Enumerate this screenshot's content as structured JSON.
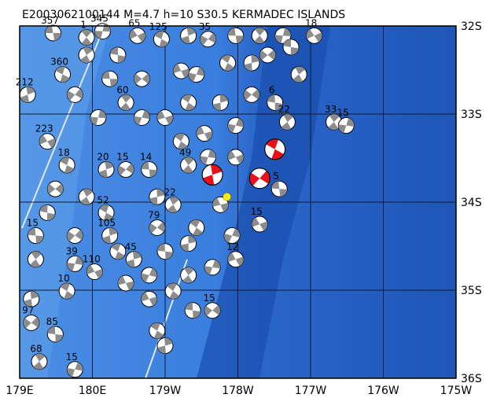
{
  "map": {
    "title": "E2003062100144 M=4.7 h=10 S30.5 KERMADEC ISLANDS",
    "xlim": [
      179,
      -175
    ],
    "ylim": [
      -32,
      -36
    ],
    "xticks": [
      {
        "value": 179,
        "label": "179E"
      },
      {
        "value": 180,
        "label": "180E"
      },
      {
        "value": -179,
        "label": "179W"
      },
      {
        "value": -178,
        "label": "178W"
      },
      {
        "value": -177,
        "label": "177W"
      },
      {
        "value": -176,
        "label": "176W"
      },
      {
        "value": -175,
        "label": "175W"
      }
    ],
    "yticks": [
      {
        "value": -32,
        "label": "32S"
      },
      {
        "value": -33,
        "label": "33S"
      },
      {
        "value": -34,
        "label": "34S"
      },
      {
        "value": -35,
        "label": "35S"
      },
      {
        "value": -36,
        "label": "36S"
      }
    ],
    "epicenter": {
      "lon": -178.15,
      "lat": -33.94,
      "color": "#ffee00"
    },
    "mechanism_color": "#8c8c8c",
    "events": [
      {
        "lon": 179.46,
        "lat": -32.08,
        "label": 357
      },
      {
        "lon": 179.92,
        "lat": -32.13,
        "label": 1
      },
      {
        "lon": -179.86,
        "lat": -32.06,
        "label": 345
      },
      {
        "lon": -179.38,
        "lat": -32.11,
        "label": 65
      },
      {
        "lon": -179.05,
        "lat": -32.15,
        "label": 125
      },
      {
        "lon": -178.68,
        "lat": -32.11
      },
      {
        "lon": -178.41,
        "lat": -32.15,
        "label": 35
      },
      {
        "lon": -178.03,
        "lat": -32.11
      },
      {
        "lon": -177.7,
        "lat": -32.11
      },
      {
        "lon": -177.38,
        "lat": -32.11
      },
      {
        "lon": -176.95,
        "lat": -32.11,
        "label": 18
      },
      {
        "lon": 179.59,
        "lat": -32.55,
        "label": 360
      },
      {
        "lon": 179.11,
        "lat": -32.78,
        "label": 212
      },
      {
        "lon": 179.76,
        "lat": -32.78
      },
      {
        "lon": -179.76,
        "lat": -32.6
      },
      {
        "lon": -179.54,
        "lat": -32.87,
        "label": 60
      },
      {
        "lon": -179.92,
        "lat": -33.04
      },
      {
        "lon": 179.38,
        "lat": -33.31,
        "label": 223
      },
      {
        "lon": 179.65,
        "lat": -33.58,
        "label": 18
      },
      {
        "lon": -179.81,
        "lat": -33.63,
        "label": 20
      },
      {
        "lon": -179.54,
        "lat": -33.63,
        "label": 15
      },
      {
        "lon": -179.22,
        "lat": -33.63,
        "label": 14
      },
      {
        "lon": -178.68,
        "lat": -33.58,
        "label": 49
      },
      {
        "lon": -178.41,
        "lat": -33.49
      },
      {
        "lon": -178.03,
        "lat": -33.49
      },
      {
        "lon": -177.49,
        "lat": -33.4,
        "color": "#e8101a"
      },
      {
        "lon": -178.35,
        "lat": -33.69,
        "color": "#e8101a"
      },
      {
        "lon": -177.7,
        "lat": -33.73,
        "color": "#e8101a"
      },
      {
        "lon": -177.43,
        "lat": -33.85,
        "label": 5
      },
      {
        "lon": -176.68,
        "lat": -33.09,
        "label": 33
      },
      {
        "lon": -176.51,
        "lat": -33.13,
        "label": 15
      },
      {
        "lon": -177.7,
        "lat": -34.25,
        "label": 15
      },
      {
        "lon": -179.81,
        "lat": -34.12,
        "label": 52
      },
      {
        "lon": -179.76,
        "lat": -34.38,
        "label": 105
      },
      {
        "lon": 179.76,
        "lat": -34.38
      },
      {
        "lon": 179.22,
        "lat": -34.38,
        "label": 15
      },
      {
        "lon": 179.22,
        "lat": -34.65
      },
      {
        "lon": 179.76,
        "lat": -34.7,
        "label": 39
      },
      {
        "lon": -179.97,
        "lat": -34.79,
        "label": 110
      },
      {
        "lon": -179.65,
        "lat": -34.56
      },
      {
        "lon": -179.43,
        "lat": -34.65,
        "label": 45
      },
      {
        "lon": -179.11,
        "lat": -34.29,
        "label": 79
      },
      {
        "lon": -179.0,
        "lat": -34.56
      },
      {
        "lon": -178.68,
        "lat": -34.83
      },
      {
        "lon": -178.35,
        "lat": -34.74
      },
      {
        "lon": -178.03,
        "lat": -34.65,
        "label": 12
      },
      {
        "lon": 179.65,
        "lat": -35.01,
        "label": 10
      },
      {
        "lon": 179.16,
        "lat": -35.1
      },
      {
        "lon": 179.16,
        "lat": -35.37,
        "label": 97
      },
      {
        "lon": 179.49,
        "lat": -35.5,
        "label": 85
      },
      {
        "lon": 179.27,
        "lat": -35.81,
        "label": 68
      },
      {
        "lon": 179.76,
        "lat": -35.9,
        "label": 15
      },
      {
        "lon": -179.22,
        "lat": -35.1
      },
      {
        "lon": -179.11,
        "lat": -35.46
      },
      {
        "lon": -179.0,
        "lat": -35.63
      },
      {
        "lon": -178.35,
        "lat": -35.23,
        "label": 15
      },
      {
        "lon": -178.62,
        "lat": -35.23
      },
      {
        "lon": -178.89,
        "lat": -34.03,
        "label": 22
      },
      {
        "lon": -179.32,
        "lat": -33.04
      },
      {
        "lon": -179.0,
        "lat": -33.04
      },
      {
        "lon": -178.68,
        "lat": -32.87
      },
      {
        "lon": -178.24,
        "lat": -32.87
      },
      {
        "lon": -177.81,
        "lat": -32.78
      },
      {
        "lon": -177.49,
        "lat": -32.87,
        "label": 6
      },
      {
        "lon": -177.32,
        "lat": -33.09,
        "label": 22
      },
      {
        "lon": -178.57,
        "lat": -32.55
      },
      {
        "lon": -178.78,
        "lat": -32.51
      },
      {
        "lon": -178.14,
        "lat": -32.42
      },
      {
        "lon": -177.81,
        "lat": -32.42
      },
      {
        "lon": -177.59,
        "lat": -32.33
      },
      {
        "lon": -177.27,
        "lat": -32.24
      },
      {
        "lon": -177.16,
        "lat": -32.55
      },
      {
        "lon": -178.03,
        "lat": -33.13
      },
      {
        "lon": -178.46,
        "lat": -33.22
      },
      {
        "lon": -178.78,
        "lat": -33.31
      },
      {
        "lon": -179.11,
        "lat": -33.94
      },
      {
        "lon": -179.32,
        "lat": -32.6
      },
      {
        "lon": -179.65,
        "lat": -32.33
      },
      {
        "lon": 179.92,
        "lat": -32.33
      },
      {
        "lon": -178.08,
        "lat": -34.38
      },
      {
        "lon": -178.24,
        "lat": -34.03
      },
      {
        "lon": -178.57,
        "lat": -34.29
      },
      {
        "lon": -178.68,
        "lat": -34.47
      },
      {
        "lon": 179.49,
        "lat": -33.85
      },
      {
        "lon": 179.38,
        "lat": -34.12
      },
      {
        "lon": 179.92,
        "lat": -33.94
      },
      {
        "lon": -179.22,
        "lat": -34.83
      },
      {
        "lon": -179.54,
        "lat": -34.92
      },
      {
        "lon": -178.89,
        "lat": -35.01
      }
    ]
  }
}
